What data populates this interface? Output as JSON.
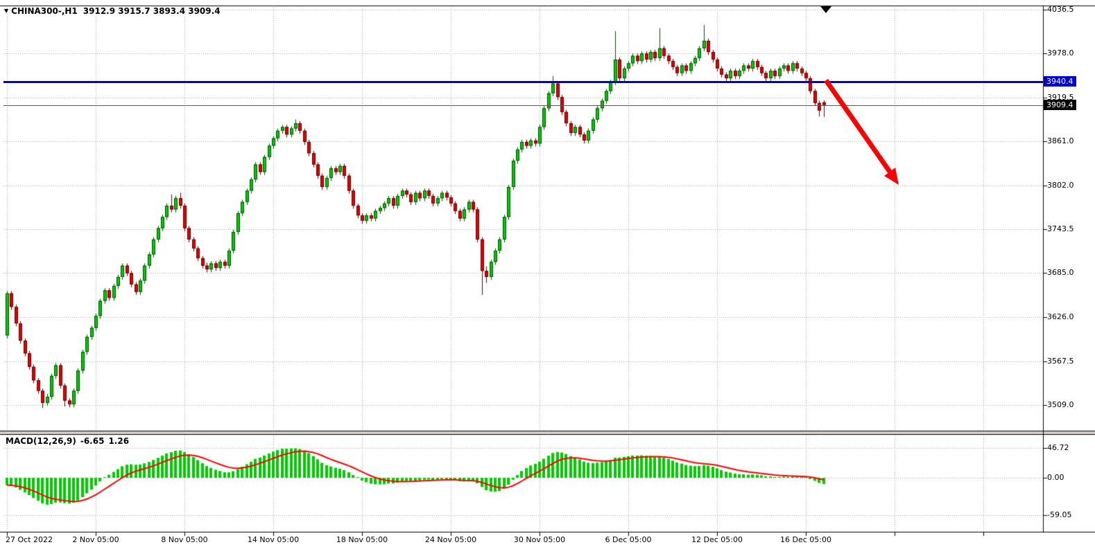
{
  "header": {
    "dropdown_icon": "▼",
    "title": "CHINA300-,H1",
    "ohlc": "3912.9 3915.7 3893.4 3909.4"
  },
  "indicator_label": {
    "name": "MACD(12,26,9)",
    "value": "-6.65",
    "signal": "1.26"
  },
  "price_tags": {
    "hline": "3940.4",
    "bid": "3909.4"
  },
  "colors": {
    "bull": "#00CC00",
    "bull_border": "#004D00",
    "bear": "#E80000",
    "bear_border": "#5E0000",
    "macd_histogram": "#00CC00",
    "macd_signal": "#FF0000",
    "hline": "#0000CC",
    "bid_line": "#5A5A5A",
    "grid": "#A9A9A9",
    "arrow": "#FF0000",
    "tag_hline_bg": "#0000CC",
    "tag_bid_bg": "#000000"
  },
  "chart_data": {
    "type": "candlestick",
    "title": "CHINA300-,H1",
    "symbol": "CHINA300-",
    "timeframe": "H1",
    "current_bar": {
      "open": 3912.9,
      "high": 3915.7,
      "low": 3893.4,
      "close": 3909.4
    },
    "y_axis": {
      "labels": [
        "4036.5",
        "3978.0",
        "3919.5",
        "3861.0",
        "3802.0",
        "3743.5",
        "3685.0",
        "3626.0",
        "3567.5",
        "3509.0"
      ]
    },
    "x_axis": {
      "labels": [
        {
          "i": 0,
          "t": "27 Oct 2022"
        },
        {
          "i": 20,
          "t": "2 Nov 05:00"
        },
        {
          "i": 40,
          "t": "8 Nov 05:00"
        },
        {
          "i": 60,
          "t": "14 Nov 05:00"
        },
        {
          "i": 80,
          "t": "18 Nov 05:00"
        },
        {
          "i": 100,
          "t": "24 Nov 05:00"
        },
        {
          "i": 120,
          "t": "30 Nov 05:00"
        },
        {
          "i": 140,
          "t": "6 Dec 05:00"
        },
        {
          "i": 160,
          "t": "12 Dec 05:00"
        },
        {
          "i": 180,
          "t": "16 Dec 05:00"
        }
      ],
      "extra_grid": [
        200,
        220
      ]
    },
    "candles": [
      [
        3602,
        3661,
        3598,
        3658
      ],
      [
        3658,
        3661,
        3636,
        3640
      ],
      [
        3640,
        3643,
        3614,
        3618
      ],
      [
        3618,
        3621,
        3591,
        3595
      ],
      [
        3595,
        3598,
        3574,
        3578
      ],
      [
        3578,
        3581,
        3556,
        3560
      ],
      [
        3560,
        3563,
        3538,
        3542
      ],
      [
        3542,
        3545,
        3524,
        3528
      ],
      [
        3528,
        3531,
        3505,
        3512
      ],
      [
        3512,
        3524,
        3508,
        3520
      ],
      [
        3520,
        3551,
        3516,
        3548
      ],
      [
        3548,
        3565,
        3544,
        3562
      ],
      [
        3562,
        3565,
        3531,
        3535
      ],
      [
        3535,
        3538,
        3507,
        3515
      ],
      [
        3515,
        3518,
        3506,
        3510
      ],
      [
        3510,
        3531,
        3506,
        3528
      ],
      [
        3528,
        3558,
        3524,
        3555
      ],
      [
        3555,
        3583,
        3551,
        3580
      ],
      [
        3580,
        3603,
        3576,
        3600
      ],
      [
        3600,
        3615,
        3596,
        3612
      ],
      [
        3612,
        3631,
        3608,
        3628
      ],
      [
        3628,
        3651,
        3624,
        3648
      ],
      [
        3648,
        3665,
        3644,
        3662
      ],
      [
        3662,
        3665,
        3648,
        3652
      ],
      [
        3652,
        3671,
        3648,
        3668
      ],
      [
        3668,
        3683,
        3664,
        3680
      ],
      [
        3680,
        3698,
        3676,
        3695
      ],
      [
        3695,
        3698,
        3681,
        3685
      ],
      [
        3685,
        3688,
        3666,
        3670
      ],
      [
        3670,
        3673,
        3656,
        3660
      ],
      [
        3660,
        3678,
        3656,
        3675
      ],
      [
        3675,
        3698,
        3671,
        3695
      ],
      [
        3695,
        3713,
        3691,
        3710
      ],
      [
        3710,
        3733,
        3706,
        3730
      ],
      [
        3730,
        3748,
        3726,
        3745
      ],
      [
        3745,
        3763,
        3741,
        3760
      ],
      [
        3760,
        3778,
        3756,
        3775
      ],
      [
        3775,
        3790,
        3766,
        3770
      ],
      [
        3770,
        3788,
        3766,
        3785
      ],
      [
        3785,
        3792,
        3771,
        3775
      ],
      [
        3775,
        3778,
        3741,
        3745
      ],
      [
        3745,
        3748,
        3726,
        3730
      ],
      [
        3730,
        3733,
        3714,
        3718
      ],
      [
        3718,
        3721,
        3701,
        3705
      ],
      [
        3705,
        3708,
        3691,
        3695
      ],
      [
        3695,
        3699,
        3686,
        3690
      ],
      [
        3690,
        3701,
        3686,
        3698
      ],
      [
        3698,
        3701,
        3688,
        3692
      ],
      [
        3692,
        3703,
        3688,
        3700
      ],
      [
        3700,
        3703,
        3691,
        3695
      ],
      [
        3695,
        3718,
        3691,
        3715
      ],
      [
        3715,
        3743,
        3711,
        3740
      ],
      [
        3740,
        3768,
        3736,
        3765
      ],
      [
        3765,
        3783,
        3761,
        3780
      ],
      [
        3780,
        3798,
        3776,
        3795
      ],
      [
        3795,
        3813,
        3791,
        3810
      ],
      [
        3810,
        3833,
        3806,
        3830
      ],
      [
        3830,
        3833,
        3816,
        3820
      ],
      [
        3820,
        3843,
        3816,
        3840
      ],
      [
        3840,
        3858,
        3836,
        3855
      ],
      [
        3855,
        3868,
        3851,
        3865
      ],
      [
        3865,
        3878,
        3861,
        3875
      ],
      [
        3875,
        3883,
        3871,
        3880
      ],
      [
        3880,
        3883,
        3866,
        3870
      ],
      [
        3870,
        3881,
        3866,
        3878
      ],
      [
        3878,
        3890,
        3874,
        3885
      ],
      [
        3885,
        3888,
        3871,
        3875
      ],
      [
        3875,
        3878,
        3856,
        3860
      ],
      [
        3860,
        3863,
        3841,
        3845
      ],
      [
        3845,
        3848,
        3826,
        3830
      ],
      [
        3830,
        3833,
        3811,
        3815
      ],
      [
        3815,
        3818,
        3796,
        3800
      ],
      [
        3800,
        3815,
        3796,
        3812
      ],
      [
        3812,
        3828,
        3808,
        3825
      ],
      [
        3825,
        3828,
        3816,
        3820
      ],
      [
        3820,
        3831,
        3816,
        3828
      ],
      [
        3828,
        3831,
        3811,
        3815
      ],
      [
        3815,
        3818,
        3791,
        3795
      ],
      [
        3795,
        3798,
        3771,
        3775
      ],
      [
        3775,
        3778,
        3758,
        3762
      ],
      [
        3762,
        3765,
        3751,
        3755
      ],
      [
        3755,
        3765,
        3751,
        3762
      ],
      [
        3762,
        3765,
        3754,
        3758
      ],
      [
        3758,
        3771,
        3754,
        3768
      ],
      [
        3768,
        3775,
        3764,
        3772
      ],
      [
        3772,
        3781,
        3768,
        3778
      ],
      [
        3778,
        3788,
        3774,
        3785
      ],
      [
        3785,
        3788,
        3771,
        3775
      ],
      [
        3775,
        3791,
        3771,
        3788
      ],
      [
        3788,
        3798,
        3784,
        3795
      ],
      [
        3795,
        3798,
        3786,
        3790
      ],
      [
        3790,
        3793,
        3776,
        3780
      ],
      [
        3780,
        3795,
        3776,
        3792
      ],
      [
        3792,
        3795,
        3781,
        3785
      ],
      [
        3785,
        3798,
        3781,
        3795
      ],
      [
        3795,
        3798,
        3784,
        3788
      ],
      [
        3788,
        3791,
        3774,
        3778
      ],
      [
        3778,
        3788,
        3774,
        3785
      ],
      [
        3785,
        3795,
        3781,
        3792
      ],
      [
        3792,
        3795,
        3782,
        3786
      ],
      [
        3786,
        3789,
        3774,
        3778
      ],
      [
        3778,
        3781,
        3764,
        3768
      ],
      [
        3768,
        3771,
        3754,
        3758
      ],
      [
        3758,
        3773,
        3754,
        3770
      ],
      [
        3770,
        3783,
        3766,
        3780
      ],
      [
        3780,
        3783,
        3766,
        3770
      ],
      [
        3770,
        3773,
        3726,
        3730
      ],
      [
        3730,
        3733,
        3656,
        3688
      ],
      [
        3688,
        3694,
        3672,
        3680
      ],
      [
        3680,
        3703,
        3676,
        3700
      ],
      [
        3700,
        3718,
        3696,
        3715
      ],
      [
        3715,
        3733,
        3711,
        3730
      ],
      [
        3730,
        3763,
        3726,
        3760
      ],
      [
        3760,
        3803,
        3756,
        3800
      ],
      [
        3800,
        3838,
        3796,
        3835
      ],
      [
        3835,
        3853,
        3831,
        3850
      ],
      [
        3850,
        3863,
        3846,
        3860
      ],
      [
        3860,
        3863,
        3851,
        3855
      ],
      [
        3855,
        3865,
        3851,
        3862
      ],
      [
        3862,
        3865,
        3854,
        3858
      ],
      [
        3858,
        3883,
        3854,
        3880
      ],
      [
        3880,
        3908,
        3876,
        3905
      ],
      [
        3905,
        3928,
        3901,
        3925
      ],
      [
        3925,
        3948,
        3921,
        3938
      ],
      [
        3938,
        3941,
        3916,
        3920
      ],
      [
        3920,
        3923,
        3896,
        3900
      ],
      [
        3900,
        3903,
        3881,
        3885
      ],
      [
        3885,
        3888,
        3868,
        3872
      ],
      [
        3872,
        3883,
        3868,
        3880
      ],
      [
        3880,
        3883,
        3866,
        3870
      ],
      [
        3870,
        3873,
        3858,
        3862
      ],
      [
        3862,
        3878,
        3858,
        3875
      ],
      [
        3875,
        3893,
        3871,
        3890
      ],
      [
        3890,
        3908,
        3886,
        3905
      ],
      [
        3905,
        3918,
        3901,
        3915
      ],
      [
        3915,
        3931,
        3911,
        3928
      ],
      [
        3928,
        3943,
        3924,
        3940
      ],
      [
        3940,
        4008,
        3936,
        3970
      ],
      [
        3970,
        3973,
        3941,
        3945
      ],
      [
        3945,
        3961,
        3941,
        3958
      ],
      [
        3958,
        3968,
        3954,
        3965
      ],
      [
        3965,
        3978,
        3961,
        3975
      ],
      [
        3975,
        3978,
        3964,
        3968
      ],
      [
        3968,
        3981,
        3964,
        3978
      ],
      [
        3978,
        3981,
        3966,
        3970
      ],
      [
        3970,
        3983,
        3966,
        3980
      ],
      [
        3980,
        3983,
        3968,
        3972
      ],
      [
        3972,
        4012,
        3968,
        3985
      ],
      [
        3985,
        3988,
        3971,
        3975
      ],
      [
        3975,
        3978,
        3964,
        3968
      ],
      [
        3968,
        3971,
        3956,
        3960
      ],
      [
        3960,
        3963,
        3948,
        3952
      ],
      [
        3952,
        3965,
        3948,
        3962
      ],
      [
        3962,
        3965,
        3951,
        3955
      ],
      [
        3955,
        3968,
        3951,
        3965
      ],
      [
        3965,
        3975,
        3961,
        3972
      ],
      [
        3972,
        3988,
        3968,
        3985
      ],
      [
        3985,
        4016,
        3981,
        3995
      ],
      [
        3995,
        3998,
        3976,
        3980
      ],
      [
        3980,
        3983,
        3966,
        3970
      ],
      [
        3970,
        3973,
        3954,
        3958
      ],
      [
        3958,
        3961,
        3946,
        3950
      ],
      [
        3950,
        3953,
        3941,
        3945
      ],
      [
        3945,
        3958,
        3941,
        3955
      ],
      [
        3955,
        3958,
        3944,
        3948
      ],
      [
        3948,
        3958,
        3944,
        3955
      ],
      [
        3955,
        3965,
        3951,
        3962
      ],
      [
        3962,
        3965,
        3954,
        3958
      ],
      [
        3958,
        3971,
        3954,
        3968
      ],
      [
        3968,
        3971,
        3956,
        3960
      ],
      [
        3960,
        3963,
        3948,
        3952
      ],
      [
        3952,
        3955,
        3941,
        3945
      ],
      [
        3945,
        3958,
        3941,
        3955
      ],
      [
        3955,
        3958,
        3944,
        3948
      ],
      [
        3948,
        3961,
        3944,
        3958
      ],
      [
        3958,
        3965,
        3954,
        3962
      ],
      [
        3962,
        3965,
        3951,
        3955
      ],
      [
        3955,
        3968,
        3951,
        3965
      ],
      [
        3965,
        3968,
        3954,
        3958
      ],
      [
        3958,
        3961,
        3948,
        3952
      ],
      [
        3952,
        3955,
        3941,
        3945
      ],
      [
        3945,
        3948,
        3924,
        3928
      ],
      [
        3928,
        3931,
        3908,
        3912
      ],
      [
        3912,
        3915,
        3894,
        3902
      ],
      [
        3912.9,
        3915.7,
        3893.4,
        3909.4
      ]
    ],
    "indicator": {
      "name": "MACD",
      "params": [
        12,
        26,
        9
      ],
      "macd_value": -6.65,
      "signal_value": 1.26,
      "scale": [
        "46.72",
        "0.00",
        "-59.05"
      ]
    },
    "overlays": {
      "horizontal_line": {
        "price": 3940.4,
        "label": "3940.4"
      },
      "bid_line": {
        "price": 3909.4,
        "label": "3909.4"
      },
      "trend_arrow": {
        "direction": "down-right"
      }
    }
  }
}
